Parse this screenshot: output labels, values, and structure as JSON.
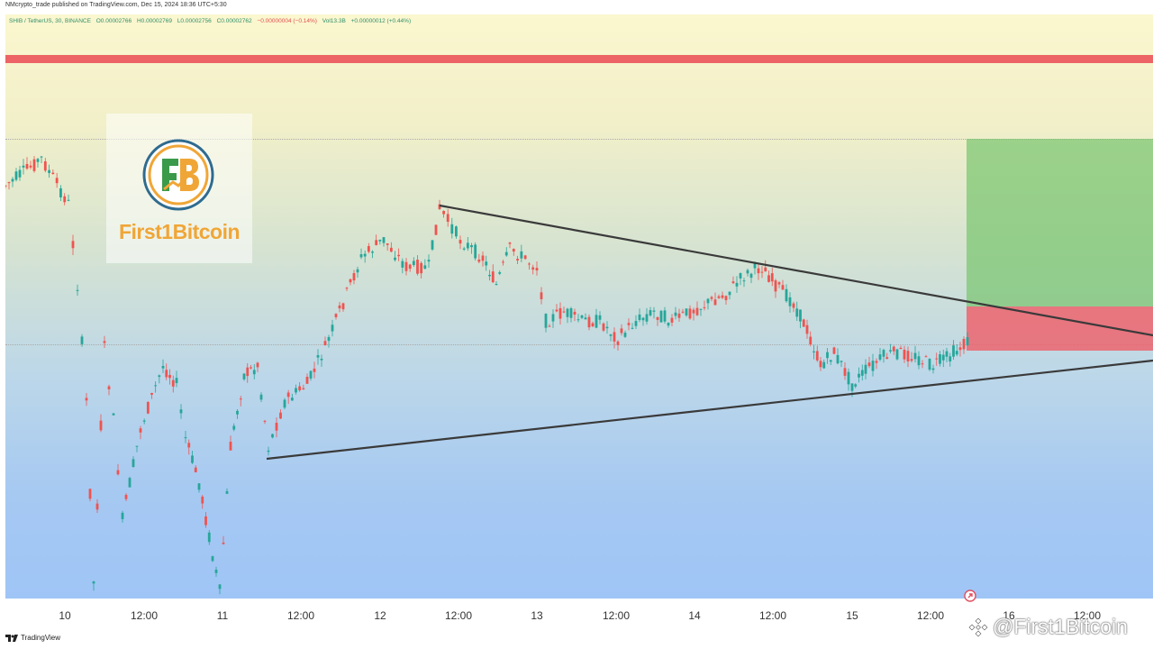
{
  "header": {
    "published_by": "NMcrypto_trade published on TradingView.com, Dec 15, 2024 18:36 UTC+5:30"
  },
  "legend": {
    "symbol": "SHIB / TetherUS, 30, BINANCE",
    "open": "O0.00002766",
    "high": "H0.00002769",
    "low": "L0.00002756",
    "close": "C0.00002762",
    "change": "−0.00000004 (−0.14%)",
    "volume": "Vol13.3B",
    "volume_change": "+0.00000012 (+0.44%)"
  },
  "logo": {
    "text": "First1Bitcoin"
  },
  "time_axis": {
    "ticks": [
      "10",
      "12:00",
      "11",
      "12:00",
      "12",
      "12:00",
      "13",
      "12:00",
      "14",
      "12:00",
      "15",
      "12:00",
      "16",
      "12:00"
    ]
  },
  "footer": {
    "brand": "TradingView",
    "watermark": "@First1Bitcoin"
  },
  "colors": {
    "up_candle": "#26a69a",
    "down_candle": "#ef5350",
    "resistance_band": "#ec6465",
    "target_zone": "#78c46e",
    "stop_zone": "#ec646e",
    "trendline": "#3a3a3a"
  }
}
